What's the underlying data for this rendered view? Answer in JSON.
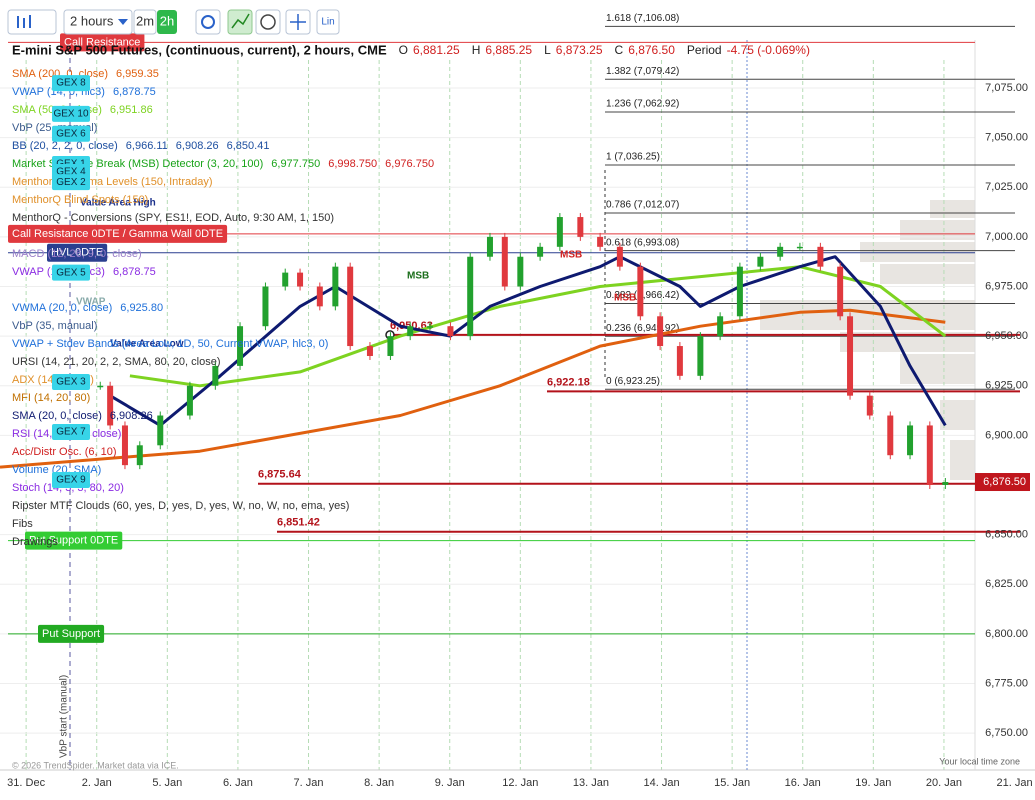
{
  "toolbar": {
    "interval": "2 hours",
    "buttons": [
      "2m",
      "2h"
    ],
    "scale": "Lin"
  },
  "chart_data": {
    "type": "line",
    "title": "E-mini S&P 500 Futures, (continuous, current), 2 hours, CME",
    "ohlc": [
      {
        "label": "O",
        "value": "6,881.25"
      },
      {
        "label": "H",
        "value": "6,885.25"
      },
      {
        "label": "L",
        "value": "6,873.25"
      },
      {
        "label": "C",
        "value": "6,876.50"
      }
    ],
    "period": {
      "label": "Period",
      "value": "-4.75 (-0.069%)"
    },
    "xlim": [
      -0.37,
      13.44
    ],
    "xticks": [
      {
        "value": 0,
        "label": "31. Dec"
      },
      {
        "value": 1,
        "label": "2. Jan"
      },
      {
        "value": 2,
        "label": "5. Jan"
      },
      {
        "value": 3,
        "label": "6. Jan"
      },
      {
        "value": 4,
        "label": "7. Jan"
      },
      {
        "value": 5,
        "label": "8. Jan"
      },
      {
        "value": 6,
        "label": "9. Jan"
      },
      {
        "value": 7,
        "label": "12. Jan"
      },
      {
        "value": 8,
        "label": "13. Jan"
      },
      {
        "value": 9,
        "label": "14. Jan"
      },
      {
        "value": 10,
        "label": "15. Jan"
      },
      {
        "value": 11,
        "label": "16. Jan"
      },
      {
        "value": 12,
        "label": "19. Jan"
      },
      {
        "value": 13,
        "label": "20. Jan"
      },
      {
        "value": 14,
        "label": "21. Jan"
      }
    ],
    "ylim": [
      6731.4,
      7111.8
    ],
    "yticks": [
      {
        "value": 7075,
        "label": "7,075.00"
      },
      {
        "value": 7050,
        "label": "7,050.00"
      },
      {
        "value": 7025,
        "label": "7,025.00"
      },
      {
        "value": 7000,
        "label": "7,000.00"
      },
      {
        "value": 6975,
        "label": "6,975.00"
      },
      {
        "value": 6950,
        "label": "6,950.00"
      },
      {
        "value": 6925,
        "label": "6,925.00"
      },
      {
        "value": 6900,
        "label": "6,900.00"
      },
      {
        "value": 6850,
        "label": "6,850.00"
      },
      {
        "value": 6825,
        "label": "6,825.00"
      },
      {
        "value": 6800,
        "label": "6,800.00"
      },
      {
        "value": 6775,
        "label": "6,775.00"
      },
      {
        "value": 6750,
        "label": "6,750.00"
      }
    ],
    "grid": true,
    "price": {
      "up_color": "#22a12e",
      "down_color": "#e0393e",
      "x": [
        1.05,
        1.19,
        1.4,
        1.61,
        1.9,
        2.32,
        2.68,
        3.03,
        3.39,
        3.67,
        3.88,
        4.16,
        4.38,
        4.59,
        4.87,
        5.16,
        5.44,
        5.72,
        6.01,
        6.29,
        6.57,
        6.78,
        7.0,
        7.28,
        7.56,
        7.85,
        8.13,
        8.41,
        8.7,
        8.98,
        9.26,
        9.55,
        9.83,
        10.11,
        10.4,
        10.68,
        10.96,
        11.25,
        11.53,
        11.67,
        11.95,
        12.24,
        12.52,
        12.8,
        13.02
      ],
      "values": [
        6925,
        6905,
        6885,
        6895,
        6910,
        6925,
        6935,
        6955,
        6975,
        6982,
        6975,
        6965,
        6985,
        6945,
        6940,
        6950,
        6955,
        6955,
        6950,
        6990,
        7000,
        6975,
        6990,
        6995,
        7010,
        7000,
        6995,
        6985,
        6960,
        6945,
        6930,
        6950,
        6960,
        6985,
        6990,
        6995,
        6995,
        6985,
        6960,
        6920,
        6910,
        6890,
        6905,
        6875,
        6876.5
      ]
    },
    "last_price": {
      "value": 6876.5,
      "label": "6,876.50"
    },
    "series": [
      {
        "name": "SMA (200, 0, close)",
        "readout": [
          "6,959.35"
        ],
        "color": "#e0600f",
        "x": [
          -0.37,
          2.46,
          5.3,
          6.71,
          8.13,
          9.55,
          10.96,
          11.67,
          13.02
        ],
        "values": [
          6884,
          6892,
          6910,
          6925,
          6945,
          6955,
          6962,
          6963,
          6957
        ]
      },
      {
        "name": "SMA (50, 0, close)",
        "readout": [
          "6,951.86"
        ],
        "color": "#7ed321",
        "x": [
          1.47,
          2.46,
          3.88,
          5.3,
          6.71,
          8.13,
          9.55,
          10.96,
          12.1,
          13.02
        ],
        "values": [
          6930,
          6925,
          6932,
          6950,
          6965,
          6975,
          6980,
          6985,
          6975,
          6950
        ]
      },
      {
        "name": "SMA (20, 0, close)",
        "readout": [
          "6,908.26"
        ],
        "color": "#0e1a70",
        "x": [
          1.19,
          1.9,
          2.75,
          3.88,
          4.38,
          5.3,
          6.01,
          6.57,
          7.28,
          8.13,
          8.41,
          9.26,
          9.55,
          10.11,
          10.96,
          11.46,
          12.1,
          12.52,
          13.02
        ],
        "values": [
          6920,
          6905,
          6930,
          6965,
          6975,
          6955,
          6950,
          6965,
          6975,
          6985,
          6990,
          6975,
          6965,
          6975,
          6985,
          6990,
          6965,
          6935,
          6905
        ]
      }
    ],
    "indicators": [
      {
        "name": "VWAP (14, 0, hlc3)",
        "readout": [
          "6,878.75"
        ],
        "color": "#1e6fd9"
      },
      {
        "name": "VbP (25, manual)",
        "readout": [],
        "color": "#3a5a8c"
      },
      {
        "name": "BB (20, 2, 2, 0, close)",
        "readout": [
          "6,966.11",
          "6,908.26",
          "6,850.41"
        ],
        "color": "#1e4fa0"
      },
      {
        "name": "Market Structure Break (MSB) Detector (3, 20, 100)",
        "readout": [
          "6,977.750",
          "6,998.750",
          "6,976.750"
        ],
        "color": "#19a319"
      },
      {
        "name": "MenthorQ Gamma Levels (150, Intraday)",
        "readout": [],
        "color": "#e0902a"
      },
      {
        "name": "MenthorQ Blind Spots (150)",
        "readout": [],
        "color": "#e0902a"
      },
      {
        "name": "MenthorQ - Conversions (SPY, ES1!, EOD, Auto, 9:30 AM, 1, 150)",
        "readout": [],
        "color": "#333333"
      },
      {
        "name": "MACD (12, 26, 9, 0, close)",
        "readout": [],
        "color": "#9b7fc9"
      },
      {
        "name": "VWAP (14, 0, hlc3)",
        "readout": [
          "6,878.75"
        ],
        "color": "#8a2be2"
      },
      {
        "name": "VWMA (20, 0, close)",
        "readout": [
          "6,925.80"
        ],
        "color": "#1e6fd9"
      },
      {
        "name": "VbP (35, manual)",
        "readout": [],
        "color": "#3a5a8c"
      },
      {
        "name": "VWAP + Stdev Bands (Area Low, 1D, 50, Current VWAP, hlc3, 0)",
        "readout": [],
        "color": "#1e6fd9"
      },
      {
        "name": "URSI (14, 21, 20, 2, 2, SMA, 80, 20, close)",
        "readout": [],
        "color": "#333333"
      },
      {
        "name": "ADX (14, 20, 14)",
        "readout": [],
        "color": "#e0902a"
      },
      {
        "name": "MFI (14, 20, 80)",
        "readout": [],
        "color": "#c07000"
      },
      {
        "name": "RSI (14, 30, 70, close)",
        "readout": [],
        "color": "#8a2be2"
      },
      {
        "name": "Acc/Distr Osc. (6, 10)",
        "readout": [],
        "color": "#d02020"
      },
      {
        "name": "Volume (20, SMA)",
        "readout": [],
        "color": "#1e6fd9"
      },
      {
        "name": "Stoch (14, 3, 3, 80, 20)",
        "readout": [],
        "color": "#8a2be2"
      },
      {
        "name": "Ripster MTF Clouds (60, yes, D, yes, D, yes, W, no, W, no, ema, yes)",
        "readout": [],
        "color": "#333333"
      },
      {
        "name": "Fibs",
        "readout": [],
        "color": "#333333"
      },
      {
        "name": "Drawings",
        "readout": [],
        "color": "#333333"
      }
    ],
    "levels": [
      {
        "label": "Call Resistance",
        "value": 7098,
        "color": "#e0393e"
      },
      {
        "label": "Call Resistance 0DTE / Gamma Wall 0DTE",
        "value": 7001.5,
        "color": "#e0393e"
      },
      {
        "label": "HVL 0DTE",
        "value": 6992,
        "color": "#2a3f8f"
      },
      {
        "label": "Put Support 0DTE",
        "value": 6847,
        "color": "#33cc33"
      },
      {
        "label": "Put Support",
        "value": 6800,
        "color": "#22aa22"
      }
    ],
    "price_lines": [
      {
        "value": 6875.64,
        "label": "6,875.64"
      },
      {
        "value": 6851.42,
        "label": "6,851.42"
      },
      {
        "value": 6922.18,
        "label": "6,922.18"
      },
      {
        "value": 6950.63,
        "label": "6,950.63"
      }
    ],
    "fibs": [
      {
        "label": "1.618 (7,106.08)",
        "value": 7106.08
      },
      {
        "label": "1.382 (7,079.42)",
        "value": 7079.42
      },
      {
        "label": "1.236 (7,062.92)",
        "value": 7062.92
      },
      {
        "label": "1 (7,036.25)",
        "value": 7036.25
      },
      {
        "label": "0.786 (7,012.07)",
        "value": 7012.07
      },
      {
        "label": "0.618 (6,993.08)",
        "value": 6993.08
      },
      {
        "label": "0.382 (6,966.42)",
        "value": 6966.42
      },
      {
        "label": "0.236 (6,949.92)",
        "value": 6949.92
      },
      {
        "label": "0 (6,923.25)",
        "value": 6923.25
      }
    ],
    "gex": [
      {
        "label": "GEX 8",
        "value": 7077.5
      },
      {
        "label": "GEX 10",
        "value": 7062
      },
      {
        "label": "GEX 6",
        "value": 7052
      },
      {
        "label": "GEX 1",
        "value": 7036.7
      },
      {
        "label": "GEX 4",
        "value": 7032.7
      },
      {
        "label": "GEX 2",
        "value": 7027.6
      },
      {
        "label": "GEX 5",
        "value": 6982
      },
      {
        "label": "GEX 3",
        "value": 6926.9
      },
      {
        "label": "GEX 7",
        "value": 6901.7
      },
      {
        "label": "GEX 9",
        "value": 6877.5
      }
    ],
    "annotations": [
      "Value Area High",
      "Value Area Low",
      "VWAP",
      "MSB",
      "MSB",
      "MSB",
      "VbP start (manual)"
    ]
  },
  "footer": {
    "credit": "© 2026 TrendSpider. Market data via ICE.",
    "timezone": "Your local time zone"
  }
}
